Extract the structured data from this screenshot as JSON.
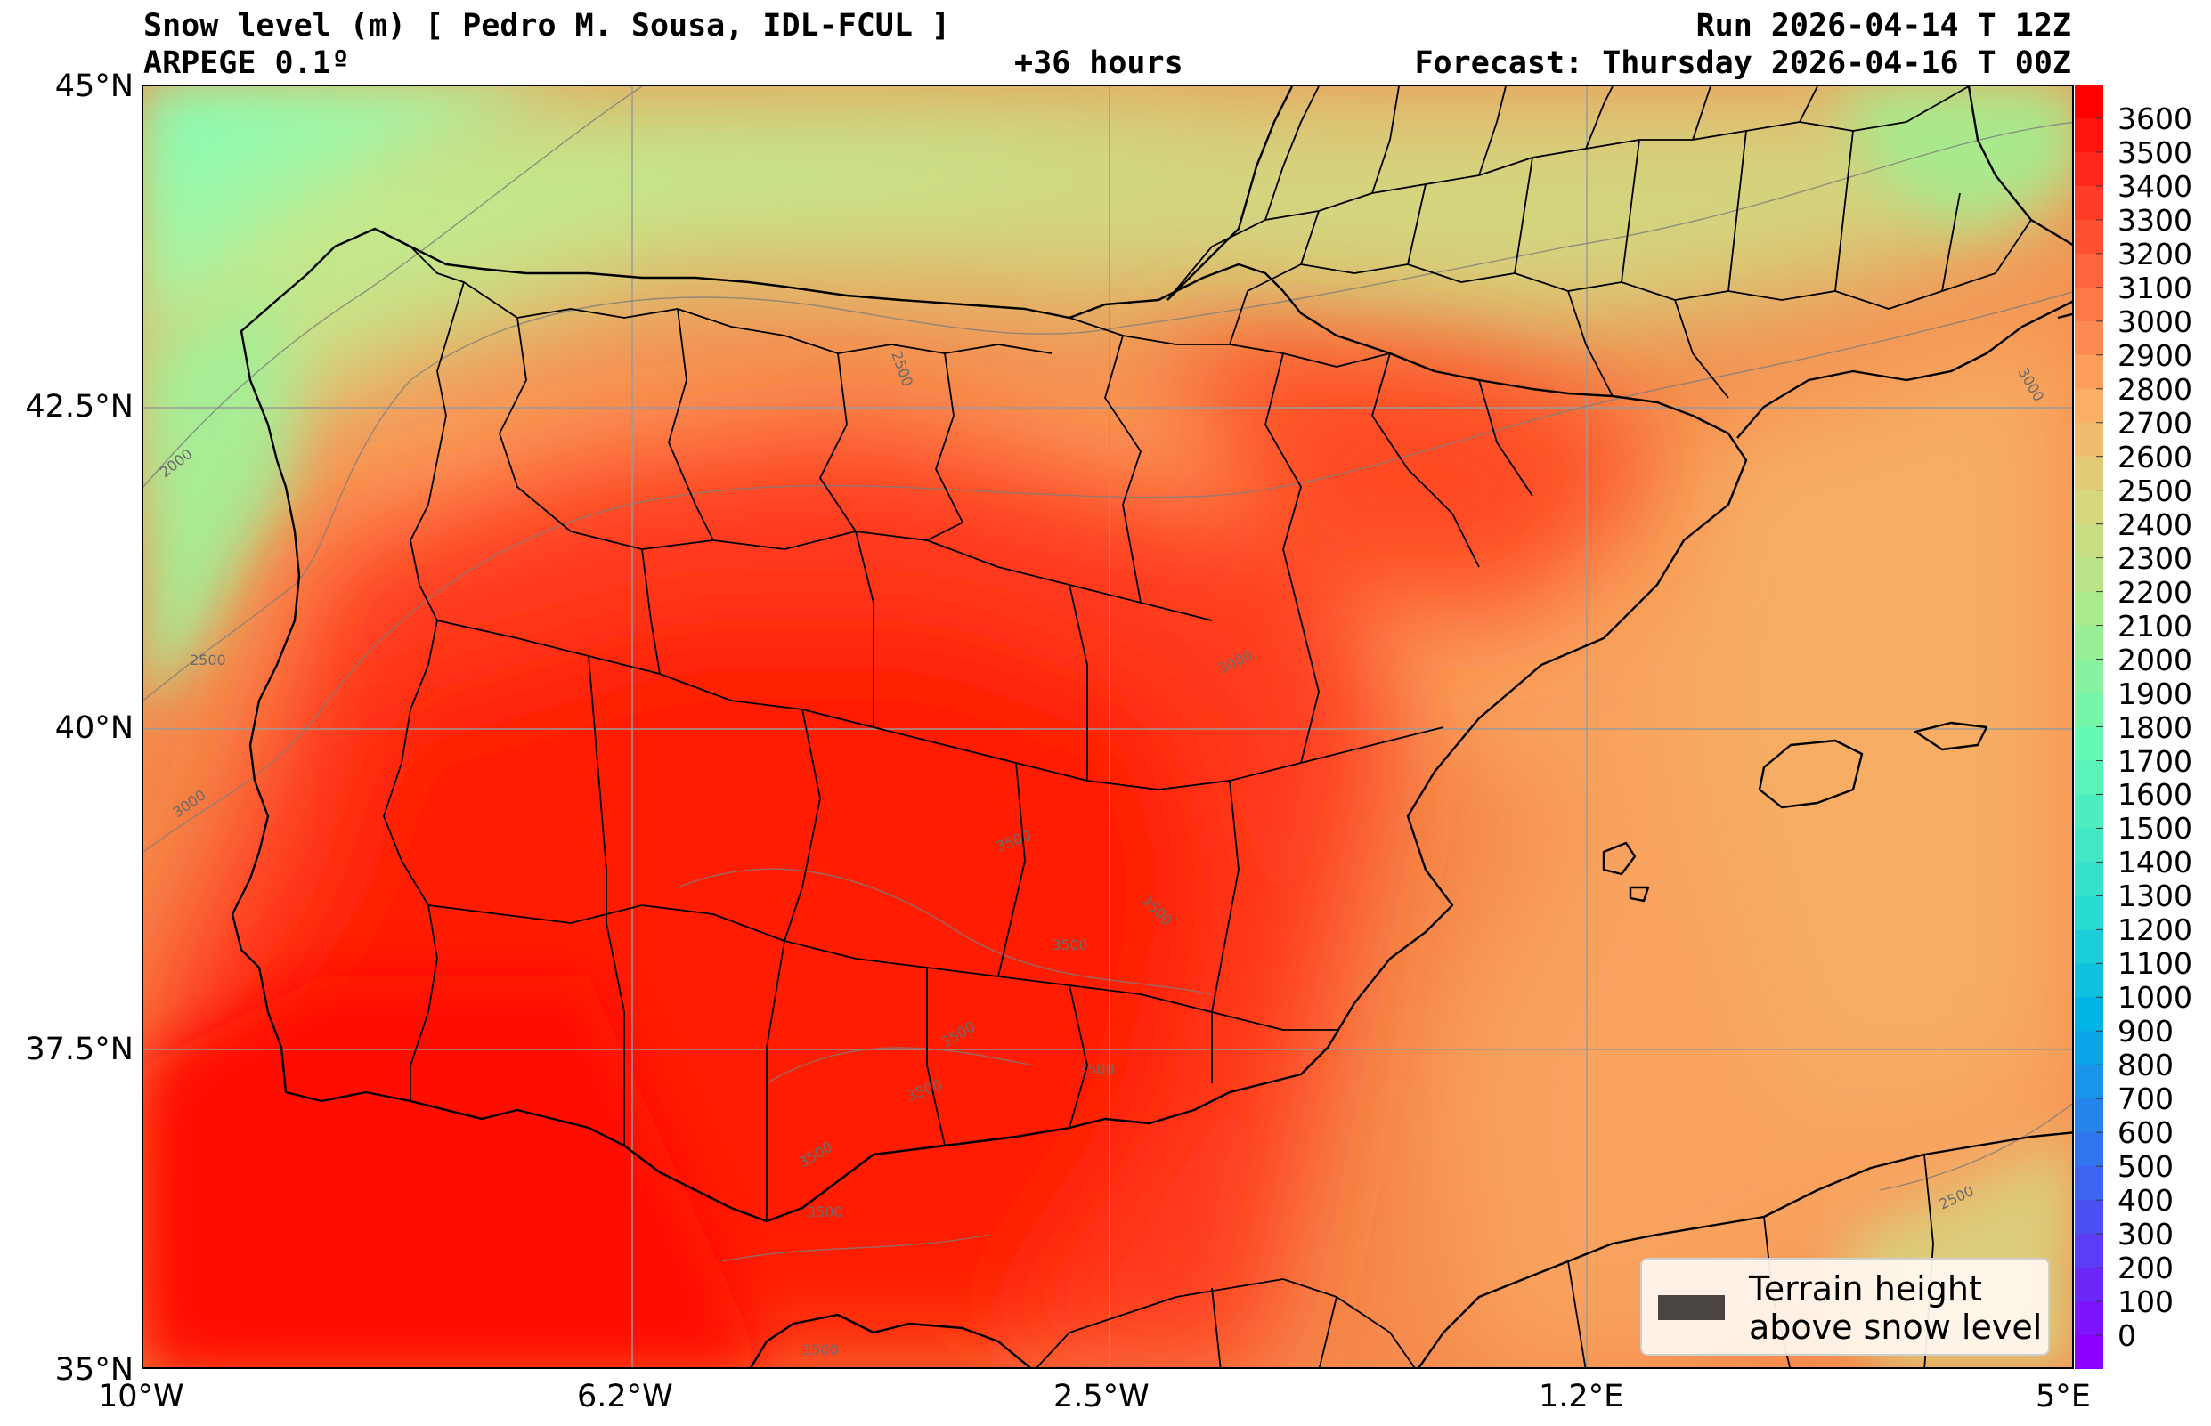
{
  "header": {
    "title_left": "Snow level (m) [ Pedro M. Sousa, IDL-FCUL ]",
    "model": "ARPEGE 0.1º",
    "lead_time": "+36 hours",
    "run": "Run 2026-04-14 T 12Z",
    "forecast": "Forecast: Thursday 2026-04-16 T 00Z"
  },
  "axes": {
    "lat_labels": [
      "45°N",
      "42.5°N",
      "40°N",
      "37.5°N",
      "35°N"
    ],
    "lon_labels": [
      "10°W",
      "6.2°W",
      "2.5°W",
      "1.2°E",
      "5°E"
    ],
    "lat_range": [
      35,
      45
    ],
    "lon_range": [
      -10,
      5
    ],
    "grid": true
  },
  "colorbar": {
    "min": 0,
    "max": 3600,
    "step": 100,
    "labels": [
      "3600",
      "3500",
      "3400",
      "3300",
      "3200",
      "3100",
      "3000",
      "2900",
      "2800",
      "2700",
      "2600",
      "2500",
      "2400",
      "2300",
      "2200",
      "2100",
      "2000",
      "1900",
      "1800",
      "1700",
      "1600",
      "1500",
      "1400",
      "1300",
      "1200",
      "1100",
      "1000",
      "900",
      "800",
      "700",
      "600",
      "500",
      "400",
      "300",
      "200",
      "100",
      "0"
    ]
  },
  "contours": [
    "2000",
    "2500",
    "3000",
    "3500"
  ],
  "legend": {
    "line1": "Terrain height",
    "line2": "above snow level",
    "swatch_color": "#4a4540"
  },
  "colors": {
    "high": "#ff0a00",
    "mid": "#f7a25c",
    "low": "#c7e689",
    "sea_northwest": "#7dffb8"
  }
}
